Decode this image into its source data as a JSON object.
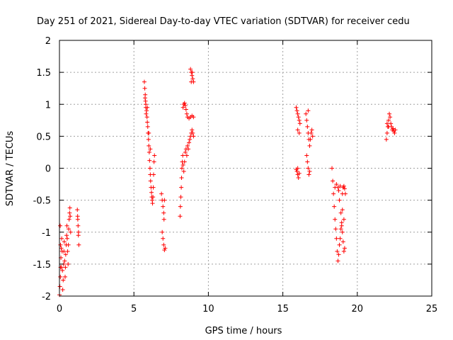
{
  "chart_data": {
    "type": "scatter",
    "title": "Day 251 of 2021, Sidereal Day-to-day VTEC variation (SDTVAR) for receiver cedu",
    "xlabel": "GPS time / hours",
    "ylabel": "SDTVAR / TECUs",
    "xlim": [
      0,
      25
    ],
    "ylim": [
      -2,
      2
    ],
    "xticks": [
      0,
      5,
      10,
      15,
      20,
      25
    ],
    "xtick_labels": [
      "0",
      "5",
      "10",
      "15",
      "20",
      "25"
    ],
    "yticks": [
      -2,
      -1.5,
      -1,
      -0.5,
      0,
      0.5,
      1,
      1.5,
      2
    ],
    "ytick_labels": [
      "-2",
      "-1.5",
      "-1",
      "-0.5",
      "0",
      "0.5",
      "1",
      "1.5",
      "2"
    ],
    "grid": true,
    "marker": "+",
    "color": "#ff0000",
    "segments": [
      {
        "name": "arc-early-a",
        "points": [
          [
            0.0,
            -1.98
          ],
          [
            0.03,
            -1.85
          ],
          [
            0.06,
            -1.7
          ],
          [
            0.08,
            -1.55
          ],
          [
            0.1,
            -1.4
          ],
          [
            0.12,
            -1.25
          ],
          [
            0.15,
            -1.1
          ],
          [
            0.18,
            -1.3
          ],
          [
            0.2,
            -1.6
          ],
          [
            0.22,
            -1.9
          ],
          [
            0.25,
            -1.75
          ],
          [
            0.28,
            -1.5
          ],
          [
            0.3,
            -1.3
          ],
          [
            0.32,
            -1.15
          ],
          [
            0.35,
            -1.45
          ],
          [
            0.38,
            -1.7
          ],
          [
            0.4,
            -1.55
          ],
          [
            0.42,
            -1.35
          ],
          [
            0.45,
            -1.2
          ],
          [
            0.48,
            -1.05
          ],
          [
            0.5,
            -0.9
          ],
          [
            0.52,
            -1.1
          ],
          [
            0.55,
            -1.3
          ],
          [
            0.58,
            -1.5
          ],
          [
            0.6,
            -1.2
          ],
          [
            0.62,
            -0.95
          ],
          [
            0.65,
            -0.8
          ],
          [
            0.68,
            -0.7
          ],
          [
            0.7,
            -0.62
          ],
          [
            0.72,
            -0.75
          ],
          [
            0.75,
            -1.0
          ],
          [
            0.05,
            -0.9
          ],
          [
            0.07,
            -1.2
          ],
          [
            0.13,
            -1.55
          ]
        ]
      },
      {
        "name": "arc-early-b",
        "points": [
          [
            1.2,
            -0.65
          ],
          [
            1.22,
            -0.75
          ],
          [
            1.25,
            -0.9
          ],
          [
            1.27,
            -1.05
          ],
          [
            1.3,
            -1.2
          ],
          [
            1.28,
            -1.0
          ],
          [
            1.23,
            -0.8
          ]
        ]
      },
      {
        "name": "arc-morning",
        "points": [
          [
            5.7,
            1.35
          ],
          [
            5.73,
            1.25
          ],
          [
            5.76,
            1.15
          ],
          [
            5.78,
            1.05
          ],
          [
            5.8,
            0.95
          ],
          [
            5.82,
            0.85
          ],
          [
            5.85,
            0.9
          ],
          [
            5.88,
            0.8
          ],
          [
            5.9,
            0.72
          ],
          [
            5.93,
            0.65
          ],
          [
            5.95,
            0.55
          ],
          [
            5.98,
            0.45
          ],
          [
            6.0,
            0.35
          ],
          [
            6.03,
            0.25
          ],
          [
            6.05,
            0.12
          ],
          [
            6.08,
            0.0
          ],
          [
            6.1,
            -0.1
          ],
          [
            6.12,
            -0.2
          ],
          [
            6.15,
            -0.3
          ],
          [
            6.18,
            -0.38
          ],
          [
            6.2,
            -0.45
          ],
          [
            6.23,
            -0.5
          ],
          [
            6.25,
            -0.55
          ],
          [
            6.28,
            -0.45
          ],
          [
            6.3,
            -0.3
          ],
          [
            6.32,
            -0.1
          ],
          [
            6.35,
            0.1
          ],
          [
            6.38,
            0.2
          ],
          [
            5.75,
            1.1
          ],
          [
            5.8,
            1.0
          ],
          [
            5.9,
            0.95
          ],
          [
            6.0,
            0.55
          ],
          [
            6.1,
            0.3
          ]
        ]
      },
      {
        "name": "arc-dip",
        "points": [
          [
            6.85,
            -0.4
          ],
          [
            6.9,
            -0.5
          ],
          [
            6.95,
            -0.6
          ],
          [
            7.0,
            -0.7
          ],
          [
            7.02,
            -0.8
          ],
          [
            7.05,
            -0.5
          ],
          [
            6.9,
            -1.0
          ],
          [
            6.95,
            -1.1
          ],
          [
            7.0,
            -1.2
          ],
          [
            7.05,
            -1.28
          ],
          [
            7.1,
            -1.25
          ]
        ]
      },
      {
        "name": "arc-midday-a",
        "points": [
          [
            8.1,
            -0.75
          ],
          [
            8.12,
            -0.6
          ],
          [
            8.15,
            -0.45
          ],
          [
            8.18,
            -0.3
          ],
          [
            8.2,
            -0.15
          ],
          [
            8.22,
            0.0
          ],
          [
            8.25,
            0.1
          ],
          [
            8.28,
            0.2
          ],
          [
            8.3,
            0.05
          ],
          [
            8.35,
            -0.05
          ],
          [
            8.4,
            0.1
          ],
          [
            8.45,
            0.25
          ],
          [
            8.5,
            0.3
          ],
          [
            8.55,
            0.2
          ],
          [
            8.6,
            0.35
          ],
          [
            8.65,
            0.3
          ],
          [
            8.7,
            0.4
          ],
          [
            8.75,
            0.45
          ],
          [
            8.8,
            0.5
          ],
          [
            8.85,
            0.55
          ],
          [
            8.9,
            0.6
          ],
          [
            8.95,
            0.55
          ],
          [
            9.0,
            0.5
          ]
        ]
      },
      {
        "name": "arc-midday-b",
        "points": [
          [
            8.3,
            0.95
          ],
          [
            8.35,
            1.0
          ],
          [
            8.4,
            1.02
          ],
          [
            8.45,
            0.98
          ],
          [
            8.5,
            0.92
          ],
          [
            8.55,
            0.85
          ],
          [
            8.6,
            0.8
          ],
          [
            8.7,
            0.78
          ],
          [
            8.8,
            0.8
          ],
          [
            8.9,
            0.82
          ],
          [
            9.0,
            0.8
          ]
        ]
      },
      {
        "name": "arc-midday-c",
        "points": [
          [
            8.8,
            1.55
          ],
          [
            8.85,
            1.5
          ],
          [
            8.9,
            1.45
          ],
          [
            8.95,
            1.4
          ],
          [
            9.0,
            1.35
          ],
          [
            8.85,
            1.35
          ],
          [
            8.92,
            1.5
          ]
        ]
      },
      {
        "name": "arc-afternoon-a",
        "points": [
          [
            15.9,
            0.95
          ],
          [
            15.95,
            0.9
          ],
          [
            16.0,
            0.85
          ],
          [
            16.05,
            0.8
          ],
          [
            16.1,
            0.75
          ],
          [
            16.15,
            0.7
          ],
          [
            16.0,
            0.6
          ],
          [
            16.1,
            0.55
          ]
        ]
      },
      {
        "name": "arc-afternoon-b",
        "points": [
          [
            15.9,
            -0.02
          ],
          [
            15.95,
            -0.05
          ],
          [
            16.0,
            -0.1
          ],
          [
            16.05,
            -0.15
          ],
          [
            16.0,
            0.0
          ],
          [
            16.1,
            -0.08
          ]
        ]
      },
      {
        "name": "arc-afternoon-c",
        "points": [
          [
            16.55,
            0.85
          ],
          [
            16.6,
            0.75
          ],
          [
            16.65,
            0.65
          ],
          [
            16.7,
            0.55
          ],
          [
            16.75,
            0.45
          ],
          [
            16.8,
            0.35
          ],
          [
            16.85,
            0.45
          ],
          [
            16.9,
            0.55
          ],
          [
            16.95,
            0.6
          ],
          [
            17.0,
            0.5
          ],
          [
            16.6,
            0.2
          ],
          [
            16.65,
            0.1
          ],
          [
            16.7,
            0.0
          ],
          [
            16.75,
            -0.1
          ],
          [
            16.8,
            -0.05
          ],
          [
            16.7,
            0.9
          ]
        ]
      },
      {
        "name": "arc-evening",
        "points": [
          [
            18.3,
            0.0
          ],
          [
            18.35,
            -0.2
          ],
          [
            18.4,
            -0.4
          ],
          [
            18.45,
            -0.6
          ],
          [
            18.5,
            -0.8
          ],
          [
            18.55,
            -0.95
          ],
          [
            18.6,
            -1.1
          ],
          [
            18.65,
            -1.3
          ],
          [
            18.7,
            -1.45
          ],
          [
            18.75,
            -1.35
          ],
          [
            18.8,
            -1.2
          ],
          [
            18.85,
            -1.1
          ],
          [
            18.9,
            -0.95
          ],
          [
            18.95,
            -0.9
          ],
          [
            19.0,
            -1.0
          ],
          [
            19.05,
            -1.15
          ],
          [
            19.1,
            -1.3
          ],
          [
            19.15,
            -1.25
          ],
          [
            18.5,
            -0.3
          ],
          [
            18.6,
            -0.25
          ],
          [
            18.7,
            -0.3
          ],
          [
            18.8,
            -0.5
          ],
          [
            18.9,
            -0.7
          ],
          [
            18.95,
            -0.85
          ],
          [
            19.0,
            -0.4
          ],
          [
            19.05,
            -0.3
          ],
          [
            19.1,
            -0.28
          ],
          [
            19.15,
            -0.32
          ],
          [
            19.2,
            -0.4
          ],
          [
            19.0,
            -0.65
          ],
          [
            19.1,
            -0.8
          ],
          [
            18.75,
            -0.35
          ],
          [
            18.85,
            -0.28
          ]
        ]
      },
      {
        "name": "arc-night",
        "points": [
          [
            21.95,
            0.45
          ],
          [
            22.0,
            0.55
          ],
          [
            22.05,
            0.65
          ],
          [
            22.1,
            0.75
          ],
          [
            22.15,
            0.85
          ],
          [
            22.2,
            0.8
          ],
          [
            22.25,
            0.7
          ],
          [
            22.3,
            0.65
          ],
          [
            22.35,
            0.6
          ],
          [
            22.4,
            0.62
          ],
          [
            22.45,
            0.58
          ],
          [
            22.5,
            0.55
          ],
          [
            22.55,
            0.6
          ],
          [
            22.0,
            0.7
          ],
          [
            22.1,
            0.65
          ]
        ]
      }
    ]
  }
}
